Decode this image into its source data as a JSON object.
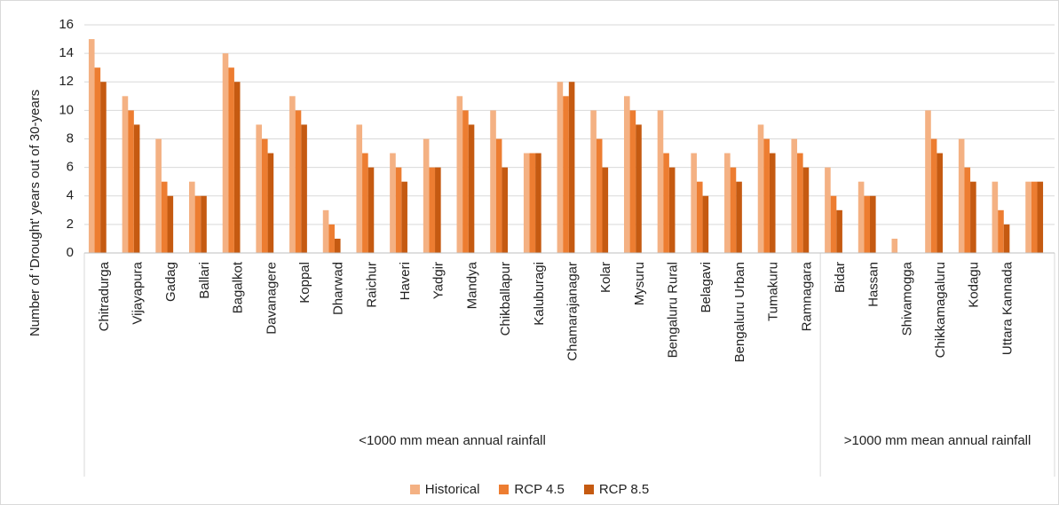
{
  "chart_data": {
    "type": "bar",
    "y_label": "Number of 'Drought' years out of 30-years",
    "categories": [
      "Chitradurga",
      "Vijayapura",
      "Gadag",
      "Ballari",
      "Bagalkot",
      "Davanagere",
      "Koppal",
      "Dharwad",
      "Raichur",
      "Haveri",
      "Yadgir",
      "Mandya",
      "Chikballapur",
      "Kaluburagi",
      "Chamarajanagar",
      "Kolar",
      "Mysuru",
      "Bengaluru Rural",
      "Belagavi",
      "Bengaluru Urban",
      "Tumakuru",
      "Ramnagara",
      "Bidar",
      "Hassan",
      "Shivamogga",
      "Chikkamagaluru",
      "Kodagu",
      "Uttara Kannada",
      null
    ],
    "groups": [
      {
        "label": "<1000 mm mean annual rainfall",
        "from": "Chitradurga"
      },
      {
        "label": ">1000 mm mean annual rainfall",
        "from": "Bidar"
      }
    ],
    "series": [
      {
        "name": "Historical",
        "color": "#f4b183",
        "values": [
          15,
          11,
          8,
          5,
          14,
          9,
          11,
          3,
          9,
          7,
          8,
          11,
          10,
          7,
          12,
          10,
          11,
          10,
          7,
          7,
          9,
          8,
          6,
          5,
          1,
          10,
          8,
          5,
          5
        ]
      },
      {
        "name": "RCP 4.5",
        "color": "#ed7d31",
        "values": [
          13,
          10,
          5,
          4,
          13,
          8,
          10,
          2,
          7,
          6,
          6,
          10,
          8,
          7,
          11,
          8,
          10,
          7,
          5,
          6,
          8,
          7,
          4,
          4,
          0,
          8,
          6,
          3,
          5
        ]
      },
      {
        "name": "RCP 8.5",
        "color": "#c55a11",
        "values": [
          12,
          9,
          4,
          4,
          12,
          7,
          9,
          1,
          6,
          5,
          6,
          9,
          6,
          7,
          12,
          6,
          9,
          6,
          4,
          5,
          7,
          6,
          3,
          4,
          0,
          7,
          5,
          2,
          5
        ]
      }
    ],
    "ylim": [
      0,
      16
    ],
    "yticks": [
      0,
      2,
      4,
      6,
      8,
      10,
      12,
      14,
      16
    ],
    "grid": true,
    "legend": "bottom"
  }
}
